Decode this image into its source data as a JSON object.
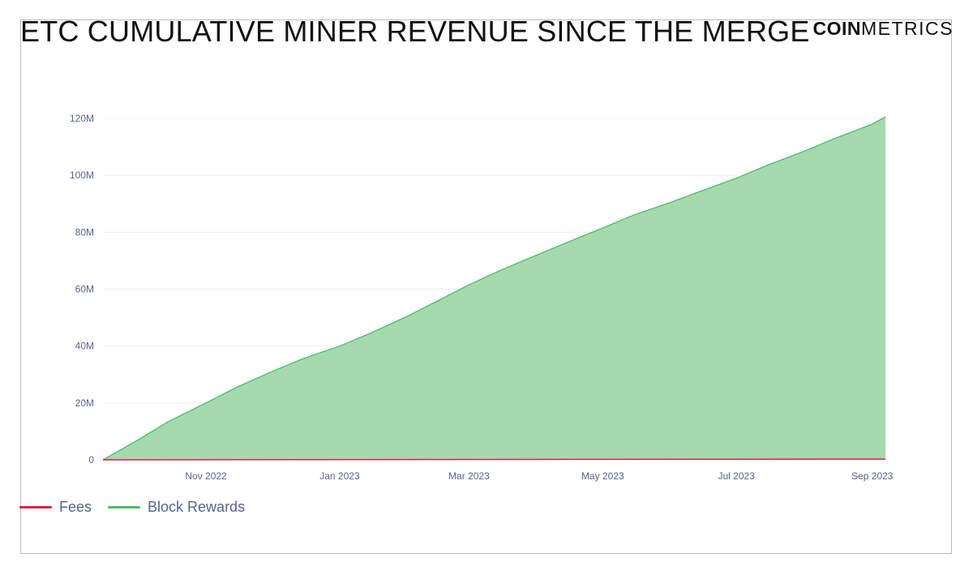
{
  "brand": {
    "bold": "COIN",
    "light": "METRICS"
  },
  "colors": {
    "fees": "#dc1f4e",
    "block_rewards": "#52b96a",
    "area_fill": "#a5d9ae",
    "grid": "#eeeeee",
    "tick_text": "#5a6290"
  },
  "chart_data": {
    "type": "area",
    "title": "ETC CUMULATIVE MINER REVENUE SINCE THE MERGE",
    "xlabel": "",
    "ylabel": "",
    "ylim": [
      0,
      120000000
    ],
    "yticks": [
      {
        "value": 0,
        "label": "0"
      },
      {
        "value": 20000000,
        "label": "20M"
      },
      {
        "value": 40000000,
        "label": "40M"
      },
      {
        "value": 60000000,
        "label": "60M"
      },
      {
        "value": 80000000,
        "label": "80M"
      },
      {
        "value": 100000000,
        "label": "100M"
      },
      {
        "value": 120000000,
        "label": "120M"
      }
    ],
    "xlim": [
      "2022-09-15",
      "2023-09-07"
    ],
    "xticks": [
      {
        "value": "2022-11-01",
        "label": "Nov 2022"
      },
      {
        "value": "2023-01-01",
        "label": "Jan 2023"
      },
      {
        "value": "2023-03-01",
        "label": "Mar 2023"
      },
      {
        "value": "2023-05-01",
        "label": "May 2023"
      },
      {
        "value": "2023-07-01",
        "label": "Jul 2023"
      },
      {
        "value": "2023-09-01",
        "label": "Sep 2023"
      }
    ],
    "grid": true,
    "legend_position": "bottom-left",
    "series": [
      {
        "name": "Fees",
        "color": "#dc1f4e",
        "points": [
          [
            "2022-09-15",
            0
          ],
          [
            "2023-09-07",
            250000
          ]
        ]
      },
      {
        "name": "Block Rewards",
        "color": "#52b96a",
        "points": [
          [
            "2022-09-15",
            0
          ],
          [
            "2022-10-01",
            7000000
          ],
          [
            "2022-10-15",
            13500000
          ],
          [
            "2022-11-01",
            20000000
          ],
          [
            "2022-11-15",
            25500000
          ],
          [
            "2022-12-01",
            31000000
          ],
          [
            "2022-12-15",
            35500000
          ],
          [
            "2023-01-01",
            40000000
          ],
          [
            "2023-01-15",
            44500000
          ],
          [
            "2023-02-01",
            50500000
          ],
          [
            "2023-02-15",
            56000000
          ],
          [
            "2023-03-01",
            61500000
          ],
          [
            "2023-03-15",
            66500000
          ],
          [
            "2023-04-01",
            72000000
          ],
          [
            "2023-04-15",
            76500000
          ],
          [
            "2023-05-01",
            81500000
          ],
          [
            "2023-05-15",
            86000000
          ],
          [
            "2023-06-01",
            90500000
          ],
          [
            "2023-06-15",
            94500000
          ],
          [
            "2023-07-01",
            99000000
          ],
          [
            "2023-07-15",
            103500000
          ],
          [
            "2023-08-01",
            108500000
          ],
          [
            "2023-08-15",
            113000000
          ],
          [
            "2023-09-01",
            118000000
          ],
          [
            "2023-09-07",
            120500000
          ]
        ]
      }
    ]
  }
}
